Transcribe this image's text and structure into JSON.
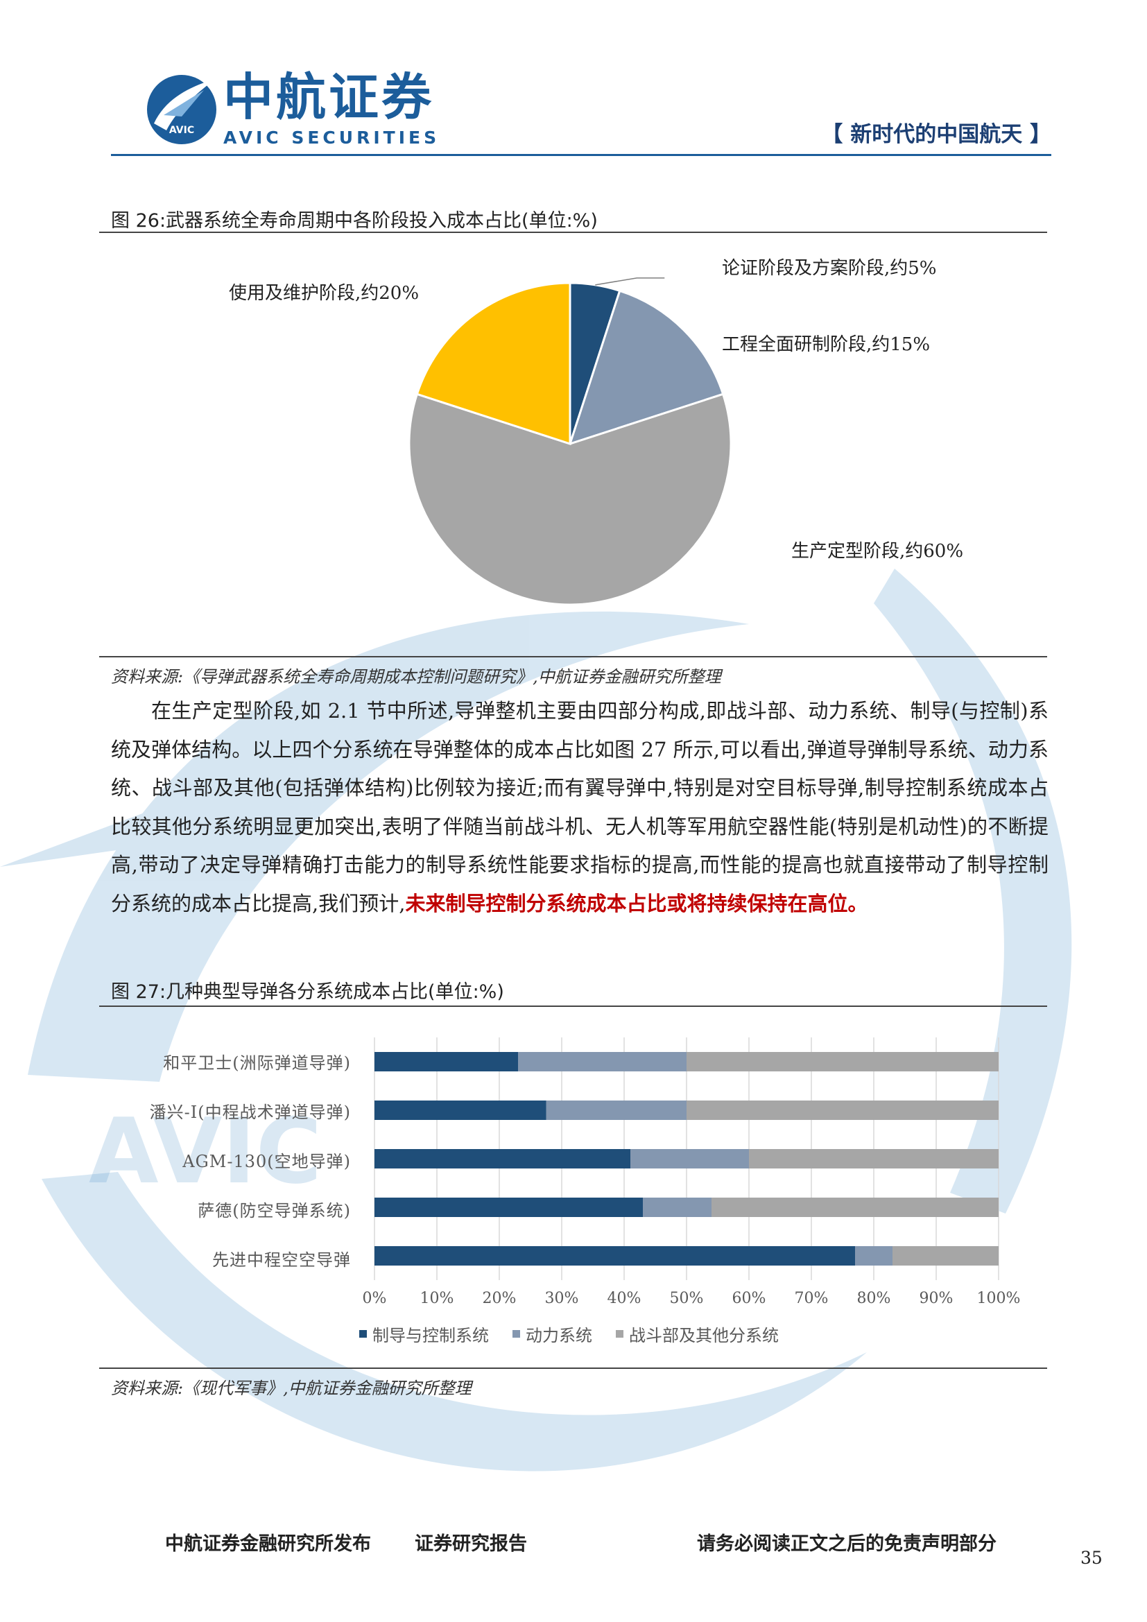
{
  "header": {
    "logo_cn": "中航证券",
    "logo_en": "AVIC SECURITIES",
    "logo_badge": "AVIC",
    "series_tag": "【 新时代的中国航天 】"
  },
  "figure26": {
    "title": "图 26:武器系统全寿命周期中各阶段投入成本占比(单位:%)",
    "source": "资料来源:《导弹武器系统全寿命周期成本控制问题研究》,中航证券金融研究所整理"
  },
  "paragraph": {
    "text_normal": "在生产定型阶段,如 2.1 节中所述,导弹整机主要由四部分构成,即战斗部、动力系统、制导(与控制)系统及弹体结构。以上四个分系统在导弹整体的成本占比如图 27 所示,可以看出,弹道导弹制导系统、动力系统、战斗部及其他(包括弹体结构)比例较为接近;而有翼导弹中,特别是对空目标导弹,制导控制系统成本占比较其他分系统明显更加突出,表明了伴随当前战斗机、无人机等军用航空器性能(特别是机动性)的不断提高,带动了决定导弹精确打击能力的制导系统性能要求指标的提高,而性能的提高也就直接带动了制导控制分系统的成本占比提高,我们预计,",
    "text_highlight": "未来制导控制分系统成本占比或将持续保持在高位。"
  },
  "figure27": {
    "title": "图 27:几种典型导弹各分系统成本占比(单位:%)",
    "source": "资料来源:《现代军事》,中航证券金融研究所整理"
  },
  "footer": {
    "left": "中航证券金融研究所发布",
    "middle": "证券研究报告",
    "right": "请务必阅读正文之后的免责声明部分",
    "page": "35"
  },
  "chart_data": [
    {
      "type": "pie",
      "title": "图 26:武器系统全寿命周期中各阶段投入成本占比(单位:%)",
      "slices": [
        {
          "label": "论证阶段及方案阶段,约5%",
          "value": 5,
          "color": "#1f4e79"
        },
        {
          "label": "工程全面研制阶段,约15%",
          "value": 15,
          "color": "#8497b0"
        },
        {
          "label": "生产定型阶段,约60%",
          "value": 60,
          "color": "#a6a6a6"
        },
        {
          "label": "使用及维护阶段,约20%",
          "value": 20,
          "color": "#ffc000"
        }
      ]
    },
    {
      "type": "bar",
      "orientation": "horizontal",
      "stacked": true,
      "title": "图 27:几种典型导弹各分系统成本占比(单位:%)",
      "categories": [
        "和平卫士(洲际弹道导弹)",
        "潘兴-Ⅰ(中程战术弹道导弹)",
        "AGM-130(空地导弹)",
        "萨德(防空导弹系统)",
        "先进中程空空导弹"
      ],
      "series": [
        {
          "name": "制导与控制系统",
          "values": [
            23,
            27.5,
            41,
            43,
            77
          ],
          "color": "#1f4e79"
        },
        {
          "name": "动力系统",
          "values": [
            27,
            22.5,
            19,
            11,
            6
          ],
          "color": "#8497b0"
        },
        {
          "name": "战斗部及其他分系统",
          "values": [
            50,
            50,
            40,
            46,
            17
          ],
          "color": "#a6a6a6"
        }
      ],
      "xlim": [
        0,
        100
      ],
      "x_ticks": [
        "0%",
        "10%",
        "20%",
        "30%",
        "40%",
        "50%",
        "60%",
        "70%",
        "80%",
        "90%",
        "100%"
      ],
      "grid": true,
      "legend": "bottom"
    }
  ]
}
